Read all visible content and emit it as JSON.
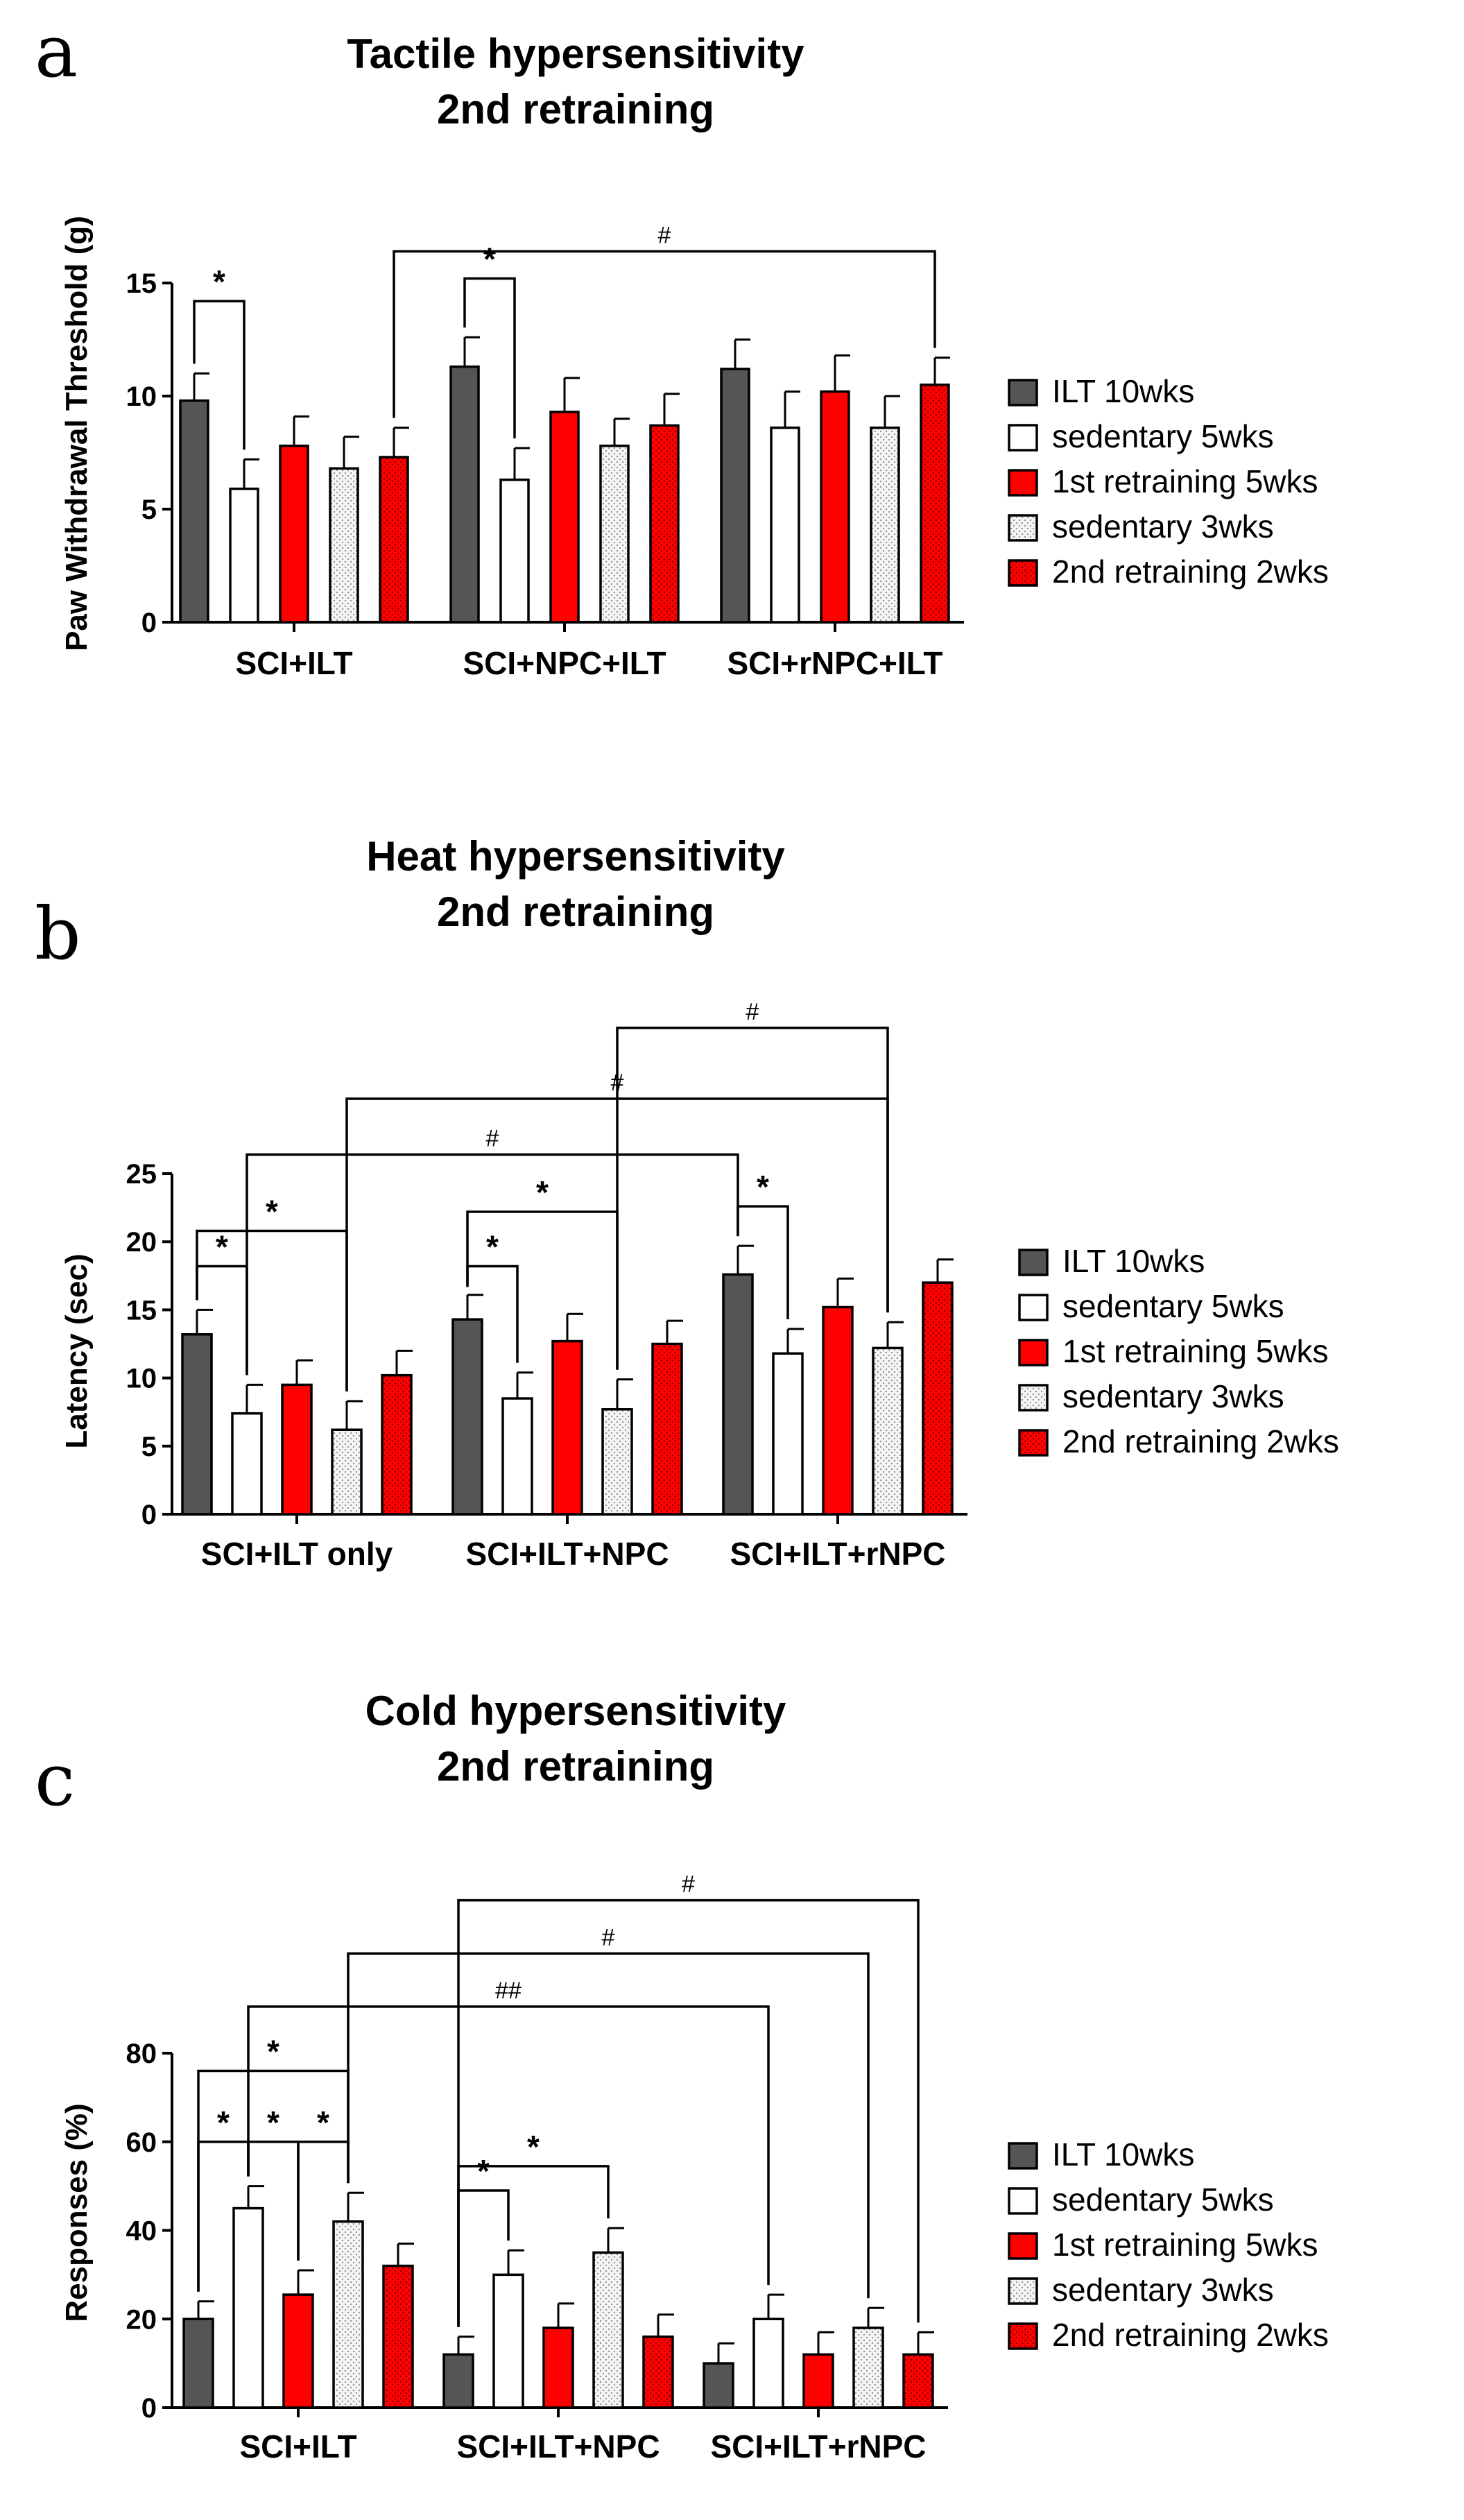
{
  "colors": {
    "ilt_10wks": "#555555",
    "sedentary_5wks": "#ffffff",
    "retraining1_5wks": "#ff0000",
    "sedentary_3wks": "#eeeeee",
    "retraining2_2wks": "#ff0000",
    "ink": "#000000"
  },
  "chart_data": [
    {
      "panel": "a",
      "type": "bar",
      "title": [
        "Tactile hypersensitivity",
        "2nd retraining"
      ],
      "ylabel": "Paw Withdrawal Threshold (g)",
      "ylim": [
        0,
        15
      ],
      "yticks": [
        0,
        5,
        10,
        15
      ],
      "categories": [
        "SCI+ILT",
        "SCI+NPC+ILT",
        "SCI+rNPC+ILT"
      ],
      "series": [
        {
          "name": "ILT 10wks",
          "values": [
            9.8,
            11.3,
            11.2
          ],
          "errors": [
            1.2,
            1.3,
            1.3
          ]
        },
        {
          "name": "sedentary 5wks",
          "values": [
            5.9,
            6.3,
            8.6
          ],
          "errors": [
            1.3,
            1.4,
            1.6
          ]
        },
        {
          "name": "1st retraining 5wks",
          "values": [
            7.8,
            9.3,
            10.2
          ],
          "errors": [
            1.3,
            1.5,
            1.6
          ]
        },
        {
          "name": "sedentary 3wks",
          "values": [
            6.8,
            7.8,
            8.6
          ],
          "errors": [
            1.4,
            1.2,
            1.4
          ]
        },
        {
          "name": "2nd retraining 2wks",
          "values": [
            7.3,
            8.7,
            10.5
          ],
          "errors": [
            1.3,
            1.4,
            1.2
          ]
        }
      ],
      "significance": [
        {
          "label": "*",
          "from": [
            0,
            0
          ],
          "to": [
            0,
            1
          ],
          "level": 14.2
        },
        {
          "label": "*",
          "from": [
            1,
            0
          ],
          "to": [
            1,
            1
          ],
          "level": 15.2
        },
        {
          "label": "#",
          "from": [
            0,
            4
          ],
          "to": [
            2,
            4
          ],
          "level": 16.4
        }
      ]
    },
    {
      "panel": "b",
      "type": "bar",
      "title": [
        "Heat hypersensitivity",
        "2nd retraining"
      ],
      "ylabel": "Latency (sec)",
      "ylim": [
        0,
        25
      ],
      "yticks": [
        0,
        5,
        10,
        15,
        20,
        25
      ],
      "categories": [
        "SCI+ILT only",
        "SCI+ILT+NPC",
        "SCI+ILT+rNPC"
      ],
      "series": [
        {
          "name": "ILT 10wks",
          "values": [
            13.2,
            14.3,
            17.6
          ],
          "errors": [
            1.8,
            1.8,
            2.1
          ]
        },
        {
          "name": "sedentary 5wks",
          "values": [
            7.4,
            8.5,
            11.8
          ],
          "errors": [
            2.1,
            1.9,
            1.8
          ]
        },
        {
          "name": "1st retraining 5wks",
          "values": [
            9.5,
            12.7,
            15.2
          ],
          "errors": [
            1.8,
            2.0,
            2.1
          ]
        },
        {
          "name": "sedentary 3wks",
          "values": [
            6.2,
            7.7,
            12.2
          ],
          "errors": [
            2.1,
            2.2,
            1.9
          ]
        },
        {
          "name": "2nd retraining 2wks",
          "values": [
            10.2,
            12.5,
            17.0
          ],
          "errors": [
            1.8,
            1.7,
            1.7
          ]
        }
      ],
      "significance": [
        {
          "label": "*",
          "from": [
            0,
            0
          ],
          "to": [
            0,
            1
          ],
          "level": 18.2
        },
        {
          "label": "*",
          "from": [
            0,
            0
          ],
          "to": [
            0,
            3
          ],
          "level": 20.8
        },
        {
          "label": "*",
          "from": [
            1,
            0
          ],
          "to": [
            1,
            1
          ],
          "level": 18.2
        },
        {
          "label": "*",
          "from": [
            1,
            0
          ],
          "to": [
            1,
            3
          ],
          "level": 22.2
        },
        {
          "label": "*",
          "from": [
            2,
            0
          ],
          "to": [
            2,
            1
          ],
          "level": 22.6
        },
        {
          "label": "#",
          "from": [
            0,
            1
          ],
          "to": [
            2,
            0
          ],
          "level": 26.4
        },
        {
          "label": "#",
          "from": [
            0,
            3
          ],
          "to": [
            2,
            3
          ],
          "level": 30.5
        },
        {
          "label": "#",
          "from": [
            1,
            3
          ],
          "to": [
            2,
            3
          ],
          "level": 35.7
        }
      ]
    },
    {
      "panel": "c",
      "type": "bar",
      "title": [
        "Cold hypersensitivity",
        "2nd retraining"
      ],
      "ylabel": "Responses (%)",
      "ylim": [
        0,
        80
      ],
      "yticks": [
        0,
        20,
        40,
        60,
        80
      ],
      "categories": [
        "SCI+ILT",
        "SCI+ILT+NPC",
        "SCI+ILT+rNPC"
      ],
      "series": [
        {
          "name": "ILT 10wks",
          "values": [
            20,
            12,
            10
          ],
          "errors": [
            4,
            4,
            4.5
          ]
        },
        {
          "name": "sedentary 5wks",
          "values": [
            45,
            30,
            20
          ],
          "errors": [
            5,
            5.5,
            5.5
          ]
        },
        {
          "name": "1st retraining 5wks",
          "values": [
            25.5,
            18,
            12
          ],
          "errors": [
            5.5,
            5.5,
            5
          ]
        },
        {
          "name": "sedentary 3wks",
          "values": [
            42,
            35,
            18
          ],
          "errors": [
            6.5,
            5.5,
            4.5
          ]
        },
        {
          "name": "2nd retraining 2wks",
          "values": [
            32,
            16,
            12
          ],
          "errors": [
            5,
            5,
            5
          ]
        }
      ],
      "significance": [
        {
          "label": "*",
          "from": [
            0,
            0
          ],
          "to": [
            0,
            1
          ],
          "level": 60
        },
        {
          "label": "*",
          "from": [
            0,
            1
          ],
          "to": [
            0,
            2
          ],
          "level": 60
        },
        {
          "label": "*",
          "from": [
            0,
            2
          ],
          "to": [
            0,
            3
          ],
          "level": 60
        },
        {
          "label": "*",
          "from": [
            0,
            0
          ],
          "to": [
            0,
            3
          ],
          "level": 76
        },
        {
          "label": "*",
          "from": [
            1,
            0
          ],
          "to": [
            1,
            1
          ],
          "level": 49
        },
        {
          "label": "*",
          "from": [
            1,
            0
          ],
          "to": [
            1,
            3
          ],
          "level": 54.5
        },
        {
          "label": "##",
          "from": [
            0,
            1
          ],
          "to": [
            2,
            1
          ],
          "level": 90.5
        },
        {
          "label": "#",
          "from": [
            0,
            3
          ],
          "to": [
            2,
            3
          ],
          "level": 102.5
        },
        {
          "label": "#",
          "from": [
            1,
            0
          ],
          "to": [
            2,
            4
          ],
          "level": 114.5
        }
      ]
    }
  ]
}
